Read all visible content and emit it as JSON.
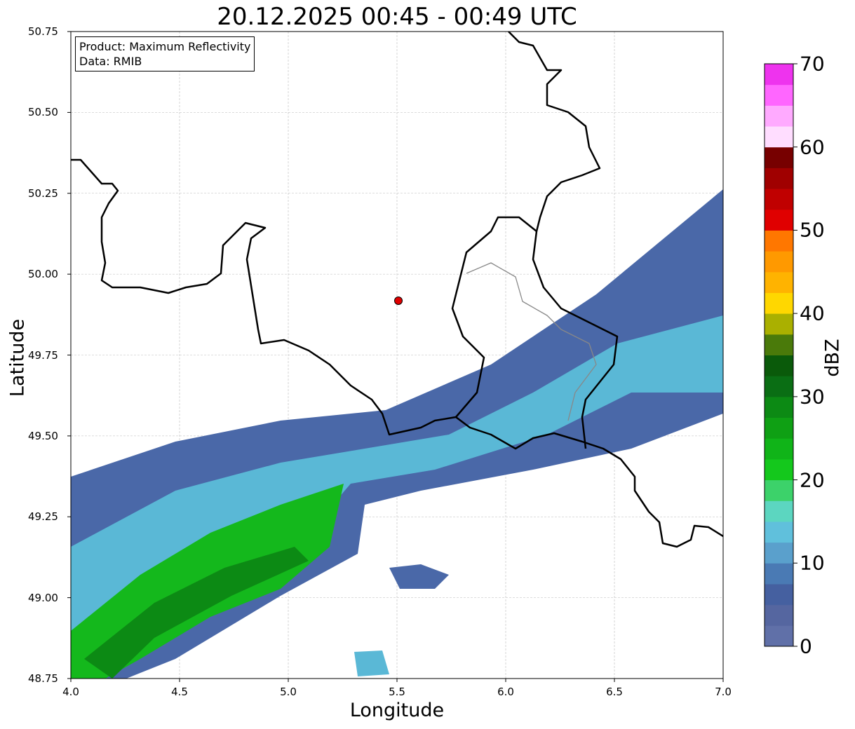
{
  "title": "20.12.2025 00:45 - 00:49 UTC",
  "info": {
    "product": "Product: Maximum Reflectivity",
    "data": "Data: RMIB"
  },
  "chart_data": {
    "type": "heatmap",
    "title": "20.12.2025 00:45 - 00:49 UTC",
    "xlabel": "Longitude",
    "ylabel": "Latitude",
    "xlim": [
      4.0,
      7.0
    ],
    "ylim": [
      48.75,
      50.75
    ],
    "xticks": [
      "4.0",
      "4.5",
      "5.0",
      "5.5",
      "6.0",
      "6.5",
      "7.0"
    ],
    "yticks": [
      "48.75",
      "49.00",
      "49.25",
      "49.50",
      "49.75",
      "50.00",
      "50.25",
      "50.50",
      "50.75"
    ],
    "grid": true,
    "radar_site": {
      "lon": 5.505,
      "lat": 49.915
    },
    "colorbar": {
      "label": "dBZ",
      "range": [
        0,
        70
      ],
      "step": 2.5,
      "ticks": [
        "0",
        "10",
        "20",
        "30",
        "40",
        "50",
        "60",
        "70"
      ],
      "colors": [
        "#6070a8",
        "#5566a0",
        "#4560a0",
        "#4a7ab4",
        "#5aa0cc",
        "#60c0dc",
        "#5cd6c0",
        "#3cd26a",
        "#14c81c",
        "#10b418",
        "#0fa014",
        "#0c8a14",
        "#0a6e14",
        "#0a5a0a",
        "#4a7a0a",
        "#aab000",
        "#ffd700",
        "#ffb300",
        "#ff9900",
        "#ff7700",
        "#e00000",
        "#c00000",
        "#a00000",
        "#770000",
        "#ffddff",
        "#ffaaff",
        "#ff66ff",
        "#ee33ee"
      ]
    }
  }
}
